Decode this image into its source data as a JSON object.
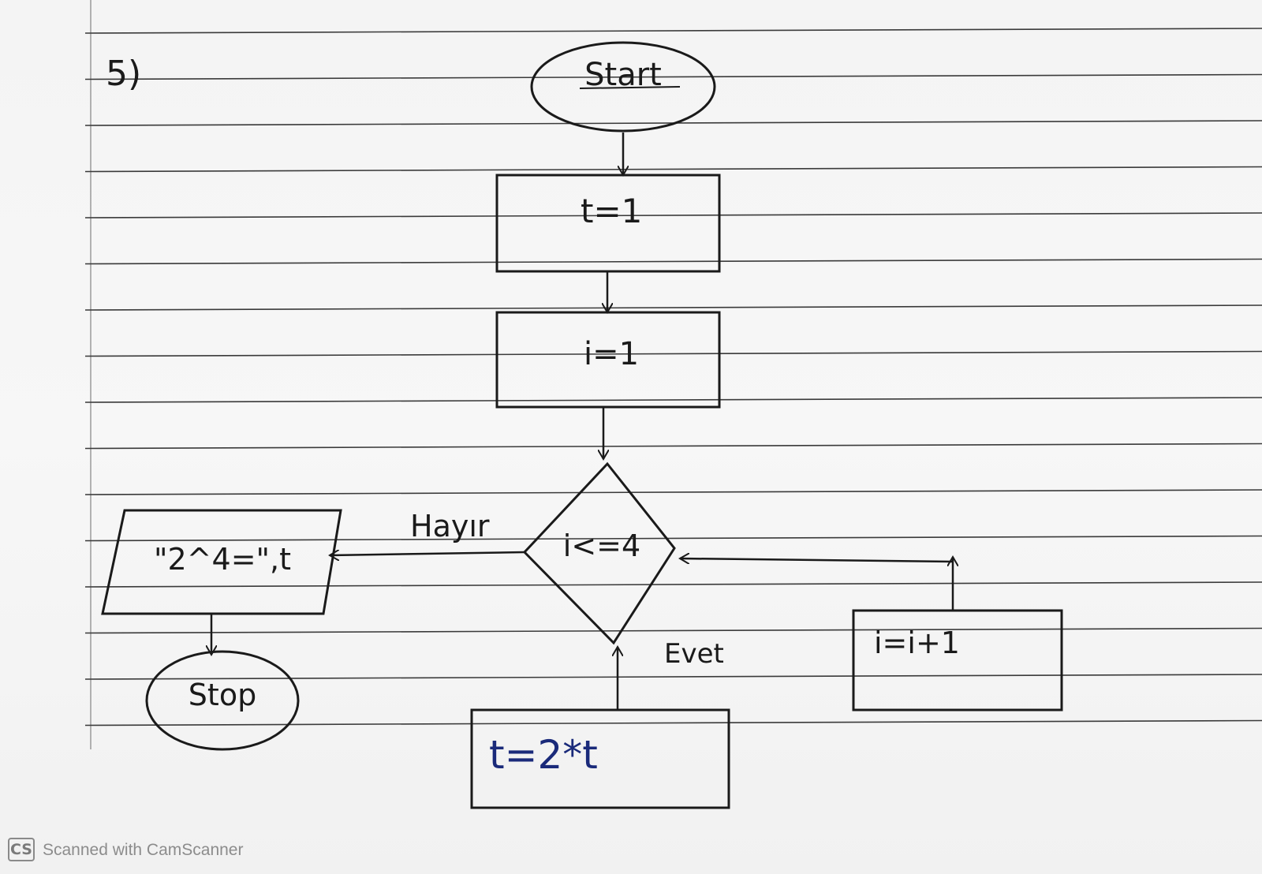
{
  "problem_number": "5)",
  "nodes": {
    "start": "Start",
    "init_t": "t=1",
    "init_i": "i=1",
    "decision": "i<=4",
    "output": "\"2^4=\",t",
    "stop": "Stop",
    "multiply": "t=2*t",
    "increment": "i=i+1"
  },
  "edge_labels": {
    "no": "Hayır",
    "yes": "Evet"
  },
  "watermark": {
    "logo": "CS",
    "text": "Scanned with CamScanner"
  }
}
